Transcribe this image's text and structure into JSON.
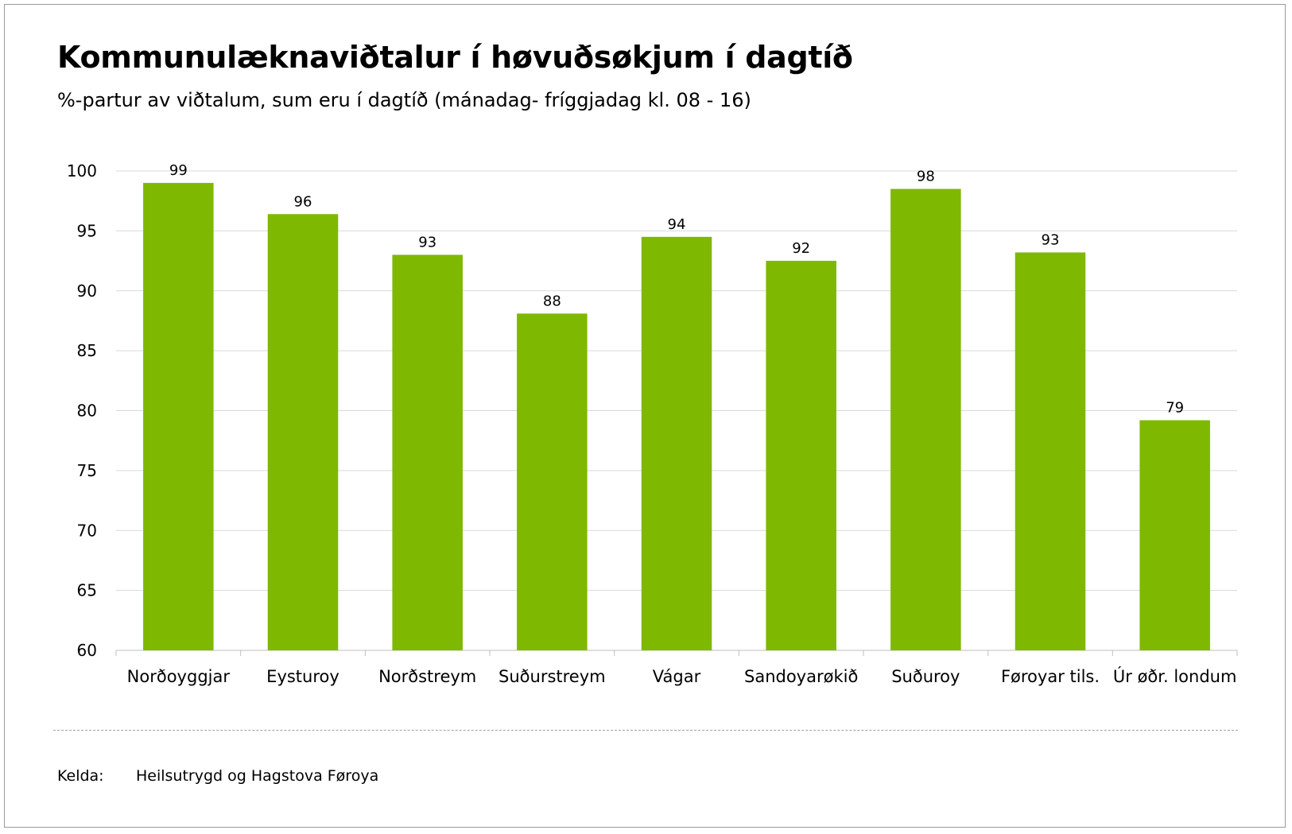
{
  "chart_data": {
    "type": "bar",
    "title": "Kommunulæknaviðtalur í høvuðsøkjum í dagtíð",
    "subtitle": "%-partur av viðtalum, sum eru í dagtíð (mánadag- fríggjadag kl. 08 - 16)",
    "categories": [
      "Norðoyggjar",
      "Eysturoy",
      "Norðstreym",
      "Suðurstreym",
      "Vágar",
      "Sandoyarøkið",
      "Suðuroy",
      "Føroyar tils.",
      "Úr øðr. londum"
    ],
    "values": [
      99,
      96.4,
      93,
      88.1,
      94.5,
      92.5,
      98.5,
      93.2,
      79.2
    ],
    "data_labels": [
      "99",
      "96",
      "93",
      "88",
      "94",
      "92",
      "98",
      "93",
      "79"
    ],
    "ylim": [
      60,
      100
    ],
    "yticks": [
      60,
      65,
      70,
      75,
      80,
      85,
      90,
      95,
      100
    ],
    "grid": true,
    "legend": "none",
    "bar_color": "#7fb800"
  },
  "source": {
    "label": "Kelda:",
    "value": "Heilsutrygd og Hagstova Føroya"
  }
}
